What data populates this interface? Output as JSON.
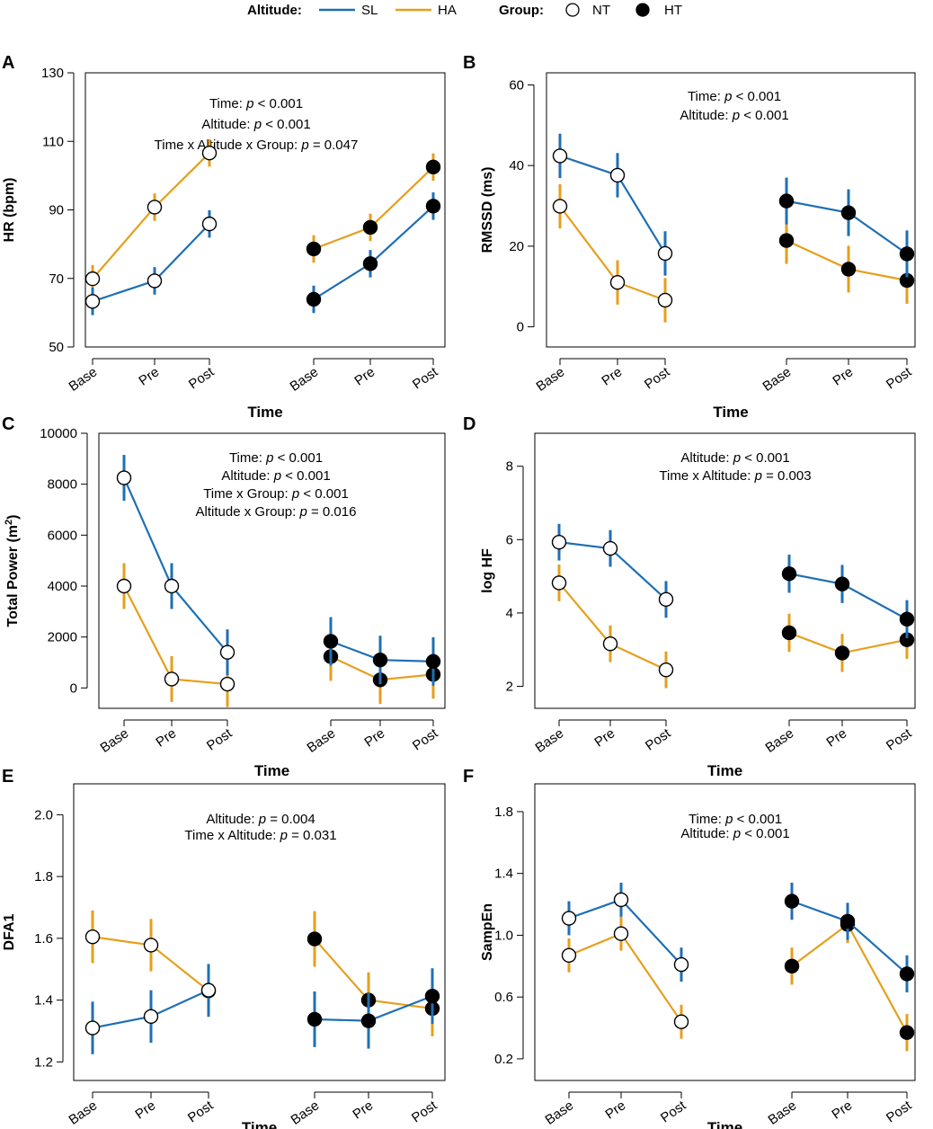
{
  "legend": {
    "altitude_title": "Altitude:",
    "altitude_items": [
      {
        "label": "SL",
        "color": "#1f6fb4"
      },
      {
        "label": "HA",
        "color": "#e69f1c"
      }
    ],
    "group_title": "Group:",
    "group_items": [
      {
        "label": "NT",
        "marker": "open-circle"
      },
      {
        "label": "HT",
        "marker": "filled-circle"
      }
    ]
  },
  "colors": {
    "SL": "#1f6fb4",
    "HA": "#e69f1c"
  },
  "chart_data": [
    {
      "panel": "A",
      "type": "line",
      "ylabel": "HR (bpm)",
      "xlabel": "Time",
      "categories": [
        "Base",
        "Pre",
        "Post"
      ],
      "ylim": [
        50,
        130
      ],
      "yticks": [
        50,
        70,
        90,
        110,
        130
      ],
      "ytick_labels": [
        "50",
        "70",
        "90",
        "110",
        "130"
      ],
      "stats": [
        {
          "lead": "Time: ",
          "p": "p",
          "rest": " < 0.001"
        },
        {
          "lead": "Altitude: ",
          "p": "p",
          "rest": " < 0.001"
        },
        {
          "lead": "Time x Altitude x Group: ",
          "p": "p",
          "rest": " = 0.047"
        }
      ],
      "series": [
        {
          "group": "NT",
          "altitude": "HA",
          "values": [
            69.9,
            90.8,
            106.6
          ],
          "err": [
            4.0,
            4.0,
            4.0
          ]
        },
        {
          "group": "NT",
          "altitude": "SL",
          "values": [
            63.3,
            69.3,
            85.9
          ],
          "err": [
            4.0,
            4.0,
            4.0
          ]
        },
        {
          "group": "HT",
          "altitude": "HA",
          "values": [
            78.6,
            84.9,
            102.5
          ],
          "err": [
            4.0,
            4.0,
            4.0
          ]
        },
        {
          "group": "HT",
          "altitude": "SL",
          "values": [
            63.9,
            74.3,
            91.1
          ],
          "err": [
            4.0,
            4.0,
            4.0
          ]
        }
      ]
    },
    {
      "panel": "B",
      "type": "line",
      "ylabel": "RMSSD (ms)",
      "xlabel": "Time",
      "categories": [
        "Base",
        "Pre",
        "Post"
      ],
      "ylim": [
        -5,
        63
      ],
      "yticks": [
        0,
        20,
        40,
        60
      ],
      "ytick_labels": [
        "0",
        "20",
        "40",
        "60"
      ],
      "stats": [
        {
          "lead": "Time: ",
          "p": "p",
          "rest": " < 0.001"
        },
        {
          "lead": "Altitude: ",
          "p": "p",
          "rest": " < 0.001"
        }
      ],
      "series": [
        {
          "group": "NT",
          "altitude": "HA",
          "values": [
            29.9,
            11.0,
            6.6
          ],
          "err": [
            5.5,
            5.5,
            5.5
          ]
        },
        {
          "group": "NT",
          "altitude": "SL",
          "values": [
            42.4,
            37.6,
            18.2
          ],
          "err": [
            5.5,
            5.5,
            5.5
          ]
        },
        {
          "group": "HT",
          "altitude": "HA",
          "values": [
            21.4,
            14.3,
            11.5
          ],
          "err": [
            5.8,
            5.8,
            5.8
          ]
        },
        {
          "group": "HT",
          "altitude": "SL",
          "values": [
            31.2,
            28.3,
            18.1
          ],
          "err": [
            5.8,
            5.8,
            5.8
          ]
        }
      ]
    },
    {
      "panel": "C",
      "type": "line",
      "ylabel": "Total Power (m",
      "ylabel_sup": "2",
      "ylabel_end": ")",
      "xlabel": "Time",
      "categories": [
        "Base",
        "Pre",
        "Post"
      ],
      "ylim": [
        -800,
        10000
      ],
      "yticks": [
        0,
        2000,
        4000,
        6000,
        8000,
        10000
      ],
      "ytick_labels": [
        "0",
        "2000",
        "4000",
        "6000",
        "8000",
        "10000"
      ],
      "stats": [
        {
          "lead": "Time: ",
          "p": "p",
          "rest": " < 0.001"
        },
        {
          "lead": "Altitude: ",
          "p": "p",
          "rest": " < 0.001"
        },
        {
          "lead": "Time x Group: ",
          "p": "p",
          "rest": " < 0.001"
        },
        {
          "lead": "Altitude x Group: ",
          "p": "p",
          "rest": " = 0.016"
        }
      ],
      "series": [
        {
          "group": "NT",
          "altitude": "HA",
          "values": [
            4000,
            350,
            150
          ],
          "err": [
            900,
            900,
            900
          ]
        },
        {
          "group": "NT",
          "altitude": "SL",
          "values": [
            8250,
            4000,
            1400
          ],
          "err": [
            900,
            900,
            900
          ]
        },
        {
          "group": "HT",
          "altitude": "HA",
          "values": [
            1230,
            320,
            530
          ],
          "err": [
            950,
            950,
            950
          ]
        },
        {
          "group": "HT",
          "altitude": "SL",
          "values": [
            1830,
            1100,
            1040
          ],
          "err": [
            950,
            950,
            950
          ]
        }
      ]
    },
    {
      "panel": "D",
      "type": "line",
      "ylabel": "log HF",
      "xlabel": "Time",
      "categories": [
        "Base",
        "Pre",
        "Post"
      ],
      "ylim": [
        1.4,
        8.9
      ],
      "yticks": [
        2,
        4,
        6,
        8
      ],
      "ytick_labels": [
        "2",
        "4",
        "6",
        "8"
      ],
      "stats": [
        {
          "lead": "Altitude: ",
          "p": "p",
          "rest": " < 0.001"
        },
        {
          "lead": "Time x Altitude: ",
          "p": "p",
          "rest": " = 0.003"
        }
      ],
      "series": [
        {
          "group": "NT",
          "altitude": "HA",
          "values": [
            4.82,
            3.16,
            2.45
          ],
          "err": [
            0.5,
            0.5,
            0.5
          ]
        },
        {
          "group": "NT",
          "altitude": "SL",
          "values": [
            5.93,
            5.76,
            4.37
          ],
          "err": [
            0.5,
            0.5,
            0.5
          ]
        },
        {
          "group": "HT",
          "altitude": "HA",
          "values": [
            3.46,
            2.91,
            3.27
          ],
          "err": [
            0.52,
            0.52,
            0.52
          ]
        },
        {
          "group": "HT",
          "altitude": "SL",
          "values": [
            5.07,
            4.79,
            3.83
          ],
          "err": [
            0.52,
            0.52,
            0.52
          ]
        }
      ]
    },
    {
      "panel": "E",
      "type": "line",
      "ylabel": "DFA1",
      "xlabel": "Time",
      "categories": [
        "Base",
        "Pre",
        "Post"
      ],
      "ylim": [
        1.14,
        2.1
      ],
      "yticks": [
        1.2,
        1.4,
        1.6,
        1.8,
        2.0
      ],
      "ytick_labels": [
        "1.2",
        "1.4",
        "1.6",
        "1.8",
        "2.0"
      ],
      "stats": [
        {
          "lead": "Altitude: ",
          "p": "p",
          "rest": " = 0.004"
        },
        {
          "lead": "Time x Altitude: ",
          "p": "p",
          "rest": " = 0.031"
        }
      ],
      "series": [
        {
          "group": "NT",
          "altitude": "HA",
          "values": [
            1.605,
            1.578,
            1.43
          ],
          "err": [
            0.085,
            0.085,
            0.085
          ]
        },
        {
          "group": "NT",
          "altitude": "SL",
          "values": [
            1.31,
            1.347,
            1.432
          ],
          "err": [
            0.085,
            0.085,
            0.085
          ]
        },
        {
          "group": "HT",
          "altitude": "HA",
          "values": [
            1.598,
            1.4,
            1.373
          ],
          "err": [
            0.09,
            0.09,
            0.09
          ]
        },
        {
          "group": "HT",
          "altitude": "SL",
          "values": [
            1.338,
            1.333,
            1.413
          ],
          "err": [
            0.09,
            0.09,
            0.09
          ]
        }
      ]
    },
    {
      "panel": "F",
      "type": "line",
      "ylabel": "SampEn",
      "xlabel": "Time",
      "categories": [
        "Base",
        "Pre",
        "Post"
      ],
      "ylim": [
        0.06,
        1.98
      ],
      "yticks": [
        0.2,
        0.6,
        1.0,
        1.4,
        1.8
      ],
      "ytick_labels": [
        "0.2",
        "0.6",
        "1.0",
        "1.4",
        "1.8"
      ],
      "stats": [
        {
          "lead": "Time: ",
          "p": "p",
          "rest": " < 0.001"
        },
        {
          "lead": "Altitude: ",
          "p": "p",
          "rest": " < 0.001"
        }
      ],
      "series": [
        {
          "group": "NT",
          "altitude": "HA",
          "values": [
            0.87,
            1.01,
            0.44
          ],
          "err": [
            0.11,
            0.11,
            0.11
          ]
        },
        {
          "group": "NT",
          "altitude": "SL",
          "values": [
            1.11,
            1.23,
            0.81
          ],
          "err": [
            0.11,
            0.11,
            0.11
          ]
        },
        {
          "group": "HT",
          "altitude": "HA",
          "values": [
            0.8,
            1.07,
            0.37
          ],
          "err": [
            0.12,
            0.12,
            0.12
          ]
        },
        {
          "group": "HT",
          "altitude": "SL",
          "values": [
            1.22,
            1.09,
            0.75
          ],
          "err": [
            0.12,
            0.12,
            0.12
          ]
        }
      ]
    }
  ]
}
